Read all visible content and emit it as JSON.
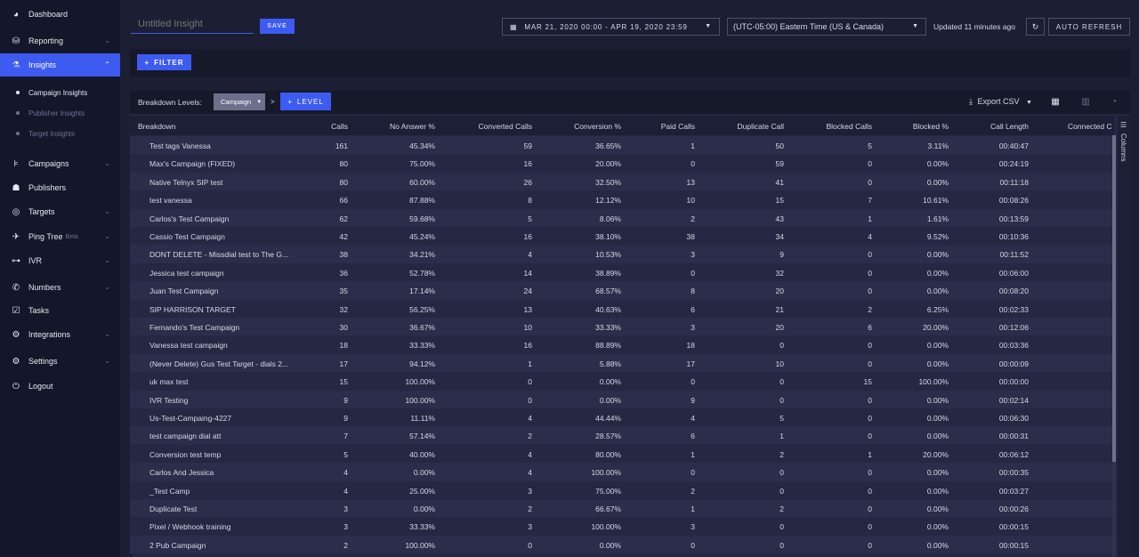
{
  "sidebar": {
    "items": [
      {
        "label": "Dashboard",
        "icon": "dashboard-icon",
        "glyph": "◕"
      },
      {
        "label": "Reporting",
        "icon": "reporting-icon",
        "glyph": "⛁"
      },
      {
        "label": "Insights",
        "icon": "flask-icon",
        "glyph": "⚗"
      },
      {
        "label": "Campaigns",
        "icon": "campaigns-icon",
        "glyph": "⊧"
      },
      {
        "label": "Publishers",
        "icon": "publishers-icon",
        "glyph": "☗"
      },
      {
        "label": "Targets",
        "icon": "target-icon",
        "glyph": "◎"
      },
      {
        "label": "Ping Tree",
        "icon": "ping-tree-icon",
        "glyph": "✈",
        "badge": "Beta"
      },
      {
        "label": "IVR",
        "icon": "ivr-icon",
        "glyph": "⊶"
      },
      {
        "label": "Numbers",
        "icon": "phone-icon",
        "glyph": "✆"
      },
      {
        "label": "Tasks",
        "icon": "calendar-check-icon",
        "glyph": "☑"
      },
      {
        "label": "Integrations",
        "icon": "cogs-icon",
        "glyph": "⚙"
      },
      {
        "label": "Settings",
        "icon": "gear-icon",
        "glyph": "⚙"
      },
      {
        "label": "Logout",
        "icon": "power-icon",
        "glyph": "⏻"
      }
    ],
    "sub_items": [
      {
        "label": "Campaign Insights"
      },
      {
        "label": "Publisher Insights"
      },
      {
        "label": "Target Insights"
      }
    ]
  },
  "topbar": {
    "title_placeholder": "Untitled Insight",
    "save_label": "SAVE",
    "date_range": "MAR 21, 2020 00:00 - APR 19, 2020 23:59",
    "timezone": "(UTC-05:00) Eastern Time (US & Canada)",
    "updated": "Updated 11 minutes ago",
    "auto_refresh_label": "AUTO REFRESH"
  },
  "filterbar": {
    "filter_label": "FILTER"
  },
  "panel": {
    "breakdown_label": "Breakdown Levels:",
    "breakdown_value": "Campaign",
    "separator": ">",
    "level_label": "LEVEL",
    "export_label": "Export CSV",
    "columns_label": "Columns"
  },
  "table": {
    "headers": [
      "Breakdown",
      "Calls",
      "No Answer %",
      "Converted Calls",
      "Conversion %",
      "Paid Calls",
      "Duplicate Call",
      "Blocked Calls",
      "Blocked %",
      "Call Length",
      "Connected C"
    ],
    "rows": [
      [
        "Test tags Vanessa",
        "161",
        "45.34%",
        "59",
        "36.65%",
        "1",
        "50",
        "5",
        "3.11%",
        "00:40:47"
      ],
      [
        "Max's Campaign (FIXED)",
        "80",
        "75.00%",
        "16",
        "20.00%",
        "0",
        "59",
        "0",
        "0.00%",
        "00:24:19"
      ],
      [
        "Native Telnyx SIP test",
        "80",
        "60.00%",
        "26",
        "32.50%",
        "13",
        "41",
        "0",
        "0.00%",
        "00:11:18"
      ],
      [
        "test vanessa",
        "66",
        "87.88%",
        "8",
        "12.12%",
        "10",
        "15",
        "7",
        "10.61%",
        "00:08:26"
      ],
      [
        "Carlos's Test Campaign",
        "62",
        "59.68%",
        "5",
        "8.06%",
        "2",
        "43",
        "1",
        "1.61%",
        "00:13:59"
      ],
      [
        "Cassio Test Campaign",
        "42",
        "45.24%",
        "16",
        "38.10%",
        "38",
        "34",
        "4",
        "9.52%",
        "00:10:36"
      ],
      [
        "DONT DELETE - Missdial test to The G...",
        "38",
        "34.21%",
        "4",
        "10.53%",
        "3",
        "9",
        "0",
        "0.00%",
        "00:11:52"
      ],
      [
        "Jessica test campaign",
        "36",
        "52.78%",
        "14",
        "38.89%",
        "0",
        "32",
        "0",
        "0.00%",
        "00:06:00"
      ],
      [
        "Juan Test Campaign",
        "35",
        "17.14%",
        "24",
        "68.57%",
        "8",
        "20",
        "0",
        "0.00%",
        "00:08:20"
      ],
      [
        "SIP HARRISON TARGET",
        "32",
        "56.25%",
        "13",
        "40.63%",
        "6",
        "21",
        "2",
        "6.25%",
        "00:02:33"
      ],
      [
        "Fernando's Test Campaign",
        "30",
        "36.67%",
        "10",
        "33.33%",
        "3",
        "20",
        "6",
        "20.00%",
        "00:12:06"
      ],
      [
        "Vanessa test campaign",
        "18",
        "33.33%",
        "16",
        "88.89%",
        "18",
        "0",
        "0",
        "0.00%",
        "00:03:36"
      ],
      [
        "(Never Delete) Gus Test Target - dials 2...",
        "17",
        "94.12%",
        "1",
        "5.88%",
        "17",
        "10",
        "0",
        "0.00%",
        "00:00:09"
      ],
      [
        "uk max test",
        "15",
        "100.00%",
        "0",
        "0.00%",
        "0",
        "0",
        "15",
        "100.00%",
        "00:00:00"
      ],
      [
        "IVR Testing",
        "9",
        "100.00%",
        "0",
        "0.00%",
        "9",
        "0",
        "0",
        "0.00%",
        "00:02:14"
      ],
      [
        "Us-Test-Campaing-4227",
        "9",
        "11.11%",
        "4",
        "44.44%",
        "4",
        "5",
        "0",
        "0.00%",
        "00:06:30"
      ],
      [
        "test campaign dial att",
        "7",
        "57.14%",
        "2",
        "28.57%",
        "6",
        "1",
        "0",
        "0.00%",
        "00:00:31"
      ],
      [
        "Conversion test temp",
        "5",
        "40.00%",
        "4",
        "80.00%",
        "1",
        "2",
        "1",
        "20.00%",
        "00:06:12"
      ],
      [
        "Carlos And Jessica",
        "4",
        "0.00%",
        "4",
        "100.00%",
        "0",
        "0",
        "0",
        "0.00%",
        "00:00:35"
      ],
      [
        "_Test Camp",
        "4",
        "25.00%",
        "3",
        "75.00%",
        "2",
        "0",
        "0",
        "0.00%",
        "00:03:27"
      ],
      [
        "Duplicate Test",
        "3",
        "0.00%",
        "2",
        "66.67%",
        "1",
        "2",
        "0",
        "0.00%",
        "00:00:26"
      ],
      [
        "Pixel / Webhook training",
        "3",
        "33.33%",
        "3",
        "100.00%",
        "3",
        "0",
        "0",
        "0.00%",
        "00:00:15"
      ],
      [
        "2 Pub Campaign",
        "2",
        "100.00%",
        "0",
        "0.00%",
        "0",
        "0",
        "0",
        "0.00%",
        "00:00:15"
      ]
    ]
  }
}
